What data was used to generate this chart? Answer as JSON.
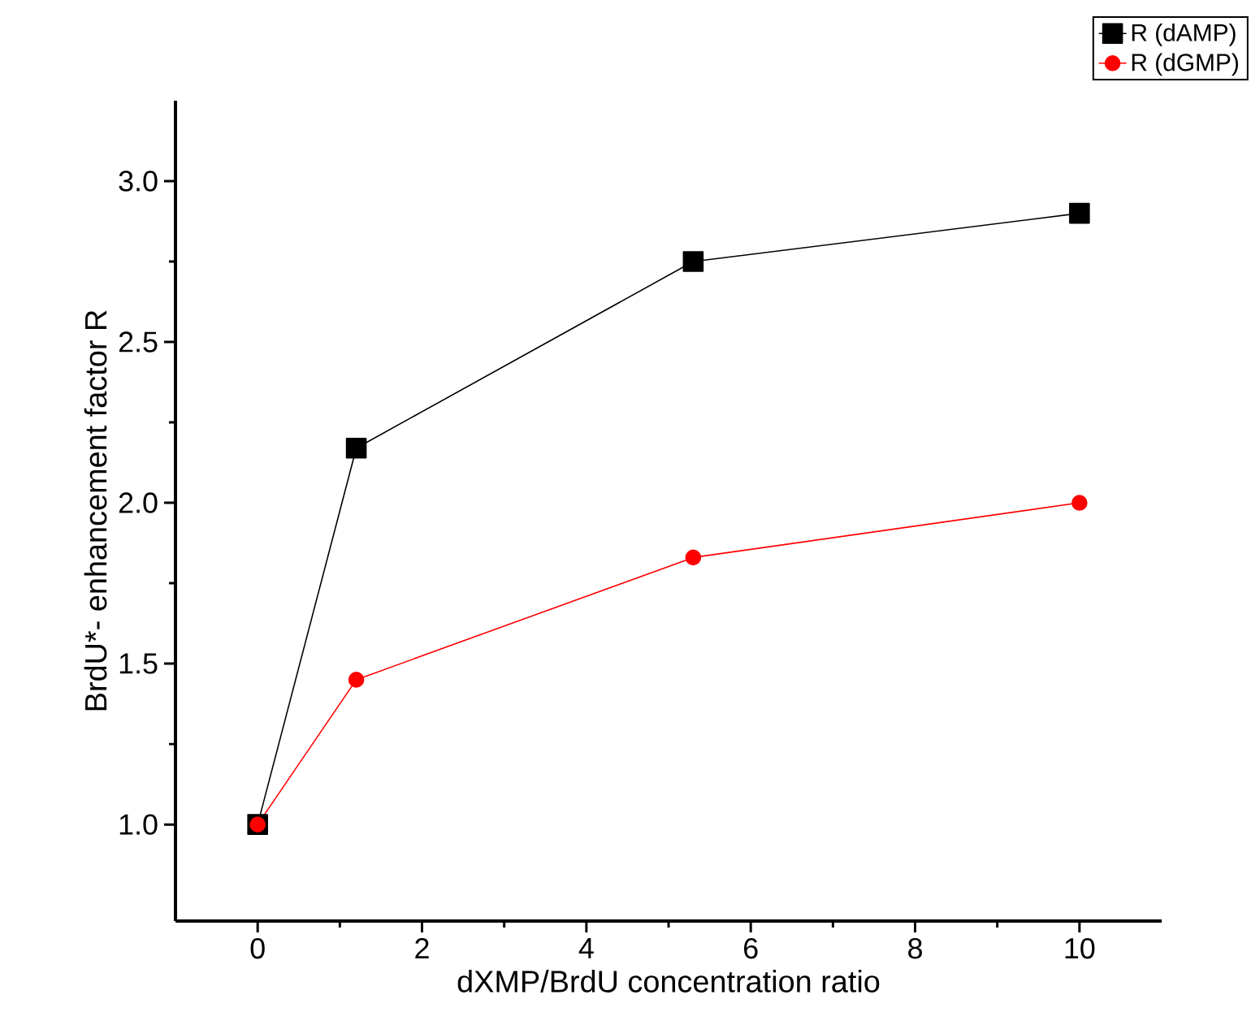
{
  "chart_data": {
    "type": "line",
    "xlabel": "dXMP/BrdU concentration ratio",
    "ylabel": "BrdU*- enhancement factor R",
    "xlim": [
      -1,
      11
    ],
    "ylim": [
      0.7,
      3.25
    ],
    "xticks": [
      0,
      2,
      4,
      6,
      8,
      10
    ],
    "yticks": [
      {
        "value": 1.0,
        "label": "1.0"
      },
      {
        "value": 1.5,
        "label": "1.5"
      },
      {
        "value": 2.0,
        "label": "2.0"
      },
      {
        "value": 2.5,
        "label": "2.5"
      },
      {
        "value": 3.0,
        "label": "3.0"
      }
    ],
    "grid": false,
    "legend": "top right",
    "line_style": "solid",
    "series": [
      {
        "name": "R (dAMP)",
        "color": "#000000",
        "marker": "square",
        "x": [
          0,
          1.2,
          5.3,
          10
        ],
        "values": [
          1.0,
          2.17,
          2.75,
          2.9
        ]
      },
      {
        "name": "R (dGMP)",
        "color": "#ff0000",
        "marker": "circle",
        "x": [
          0,
          1.2,
          5.3,
          10
        ],
        "values": [
          1.0,
          1.45,
          1.83,
          2.0
        ]
      }
    ]
  }
}
